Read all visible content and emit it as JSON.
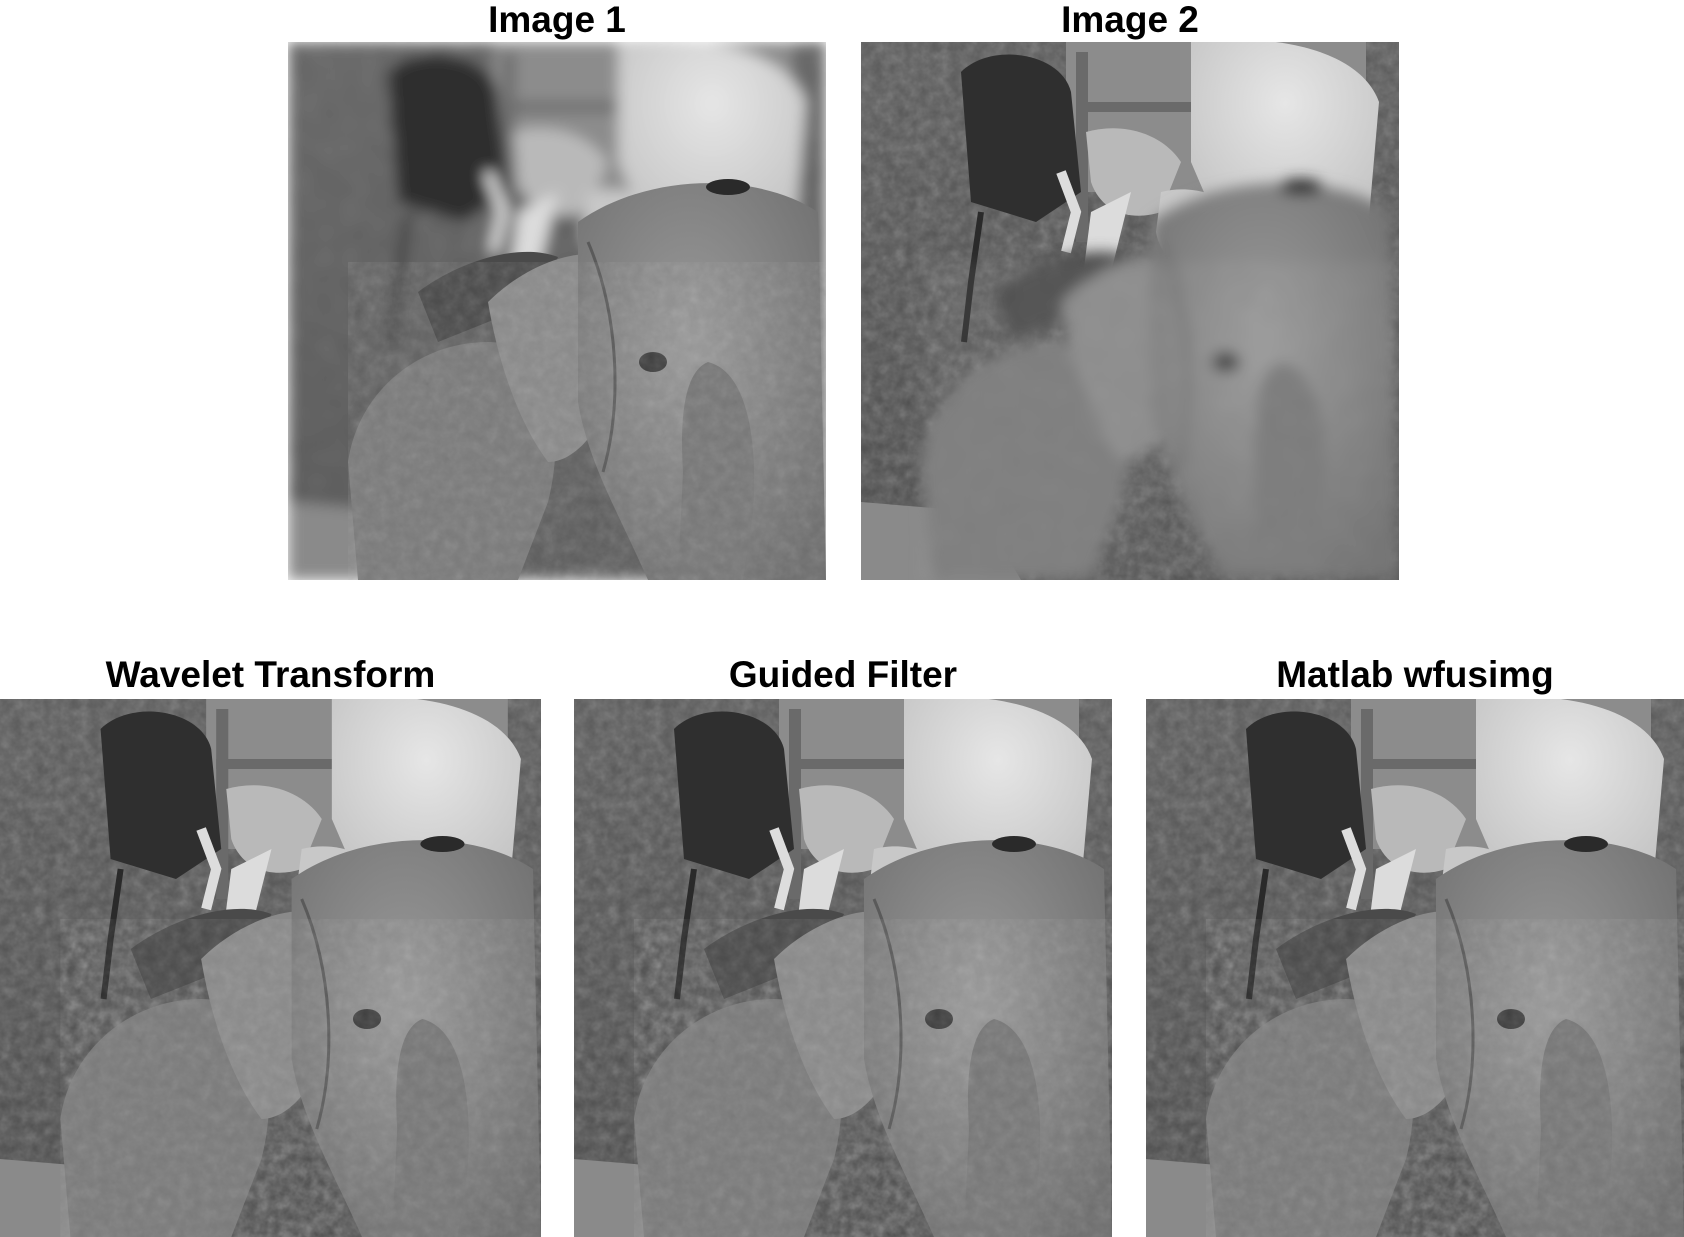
{
  "panels": [
    {
      "title": "Image 1",
      "focus": "foreground elephant sharp, riders blurred"
    },
    {
      "title": "Image 2",
      "focus": "riders sharp, foreground elephant blurred"
    },
    {
      "title": "Wavelet Transform",
      "focus": "fused all-in-focus"
    },
    {
      "title": "Guided Filter",
      "focus": "fused all-in-focus"
    },
    {
      "title": "Matlab wfusimg",
      "focus": "fused all-in-focus"
    }
  ],
  "colors": {
    "background": "#ffffff",
    "title_text": "#000000",
    "scene_dark": "#2e2e2e",
    "scene_mid": "#7d7d7d",
    "scene_light": "#d8d8d8"
  }
}
